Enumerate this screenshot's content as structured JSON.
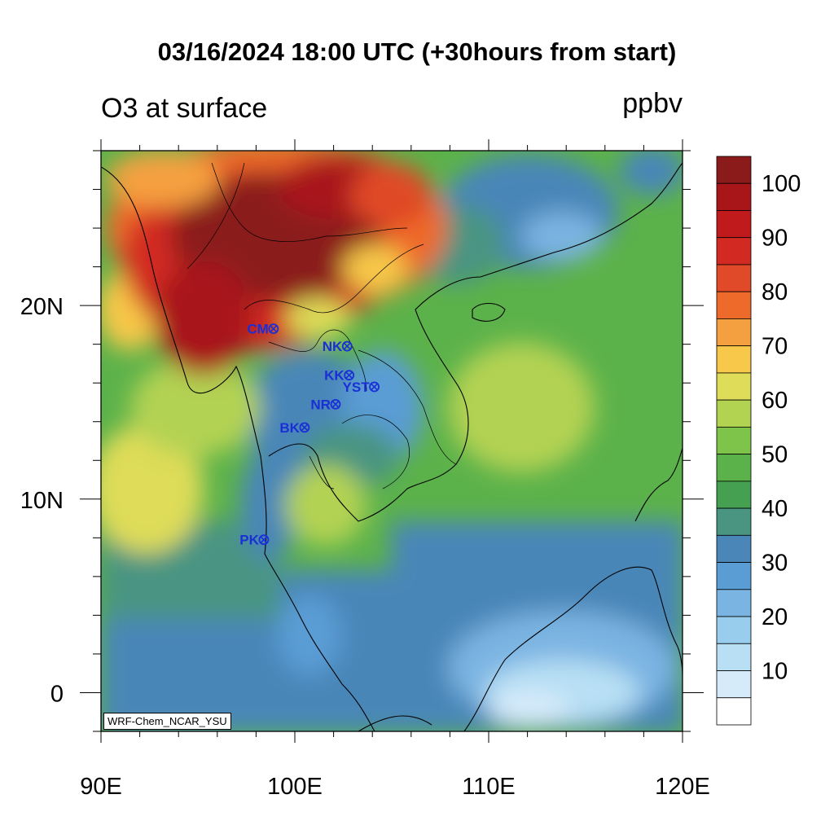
{
  "title": "03/16/2024 18:00 UTC (+30hours from start)",
  "variable_label": "O3 at surface",
  "unit_label": "ppbv",
  "credit": "WRF-Chem_NCAR_YSU",
  "axes": {
    "x_ticks": [
      {
        "value": 90,
        "label": "90E"
      },
      {
        "value": 100,
        "label": "100E"
      },
      {
        "value": 110,
        "label": "110E"
      },
      {
        "value": 120,
        "label": "120E"
      }
    ],
    "y_ticks": [
      {
        "value": 0,
        "label": "0"
      },
      {
        "value": 10,
        "label": "10N"
      },
      {
        "value": 20,
        "label": "20N"
      }
    ],
    "lon_range": [
      90,
      120
    ],
    "lat_range": [
      -2,
      28
    ]
  },
  "colorbar": {
    "labels": [
      "100",
      "90",
      "80",
      "70",
      "60",
      "50",
      "40",
      "30",
      "20",
      "10"
    ],
    "colors": [
      "#8b1a1a",
      "#a8161a",
      "#c01a1c",
      "#d22a22",
      "#e04a28",
      "#ee6a2a",
      "#f5a040",
      "#f7c84a",
      "#dedc58",
      "#b2d252",
      "#7fc44a",
      "#5cb24a",
      "#46a052",
      "#4a9482",
      "#4a86b8",
      "#5a9cd4",
      "#7ab4e2",
      "#98cdee",
      "#b8dff4",
      "#d6ebfa",
      "#ffffff"
    ]
  },
  "stations": [
    {
      "code": "CM",
      "lon": 98.9,
      "lat": 18.8
    },
    {
      "code": "NK",
      "lon": 102.7,
      "lat": 17.9
    },
    {
      "code": "KK",
      "lon": 102.8,
      "lat": 16.4
    },
    {
      "code": "YST",
      "lon": 104.1,
      "lat": 15.8
    },
    {
      "code": "NR",
      "lon": 102.1,
      "lat": 14.9
    },
    {
      "code": "BK",
      "lon": 100.5,
      "lat": 13.7
    },
    {
      "code": "PK",
      "lon": 98.4,
      "lat": 7.9
    }
  ]
}
